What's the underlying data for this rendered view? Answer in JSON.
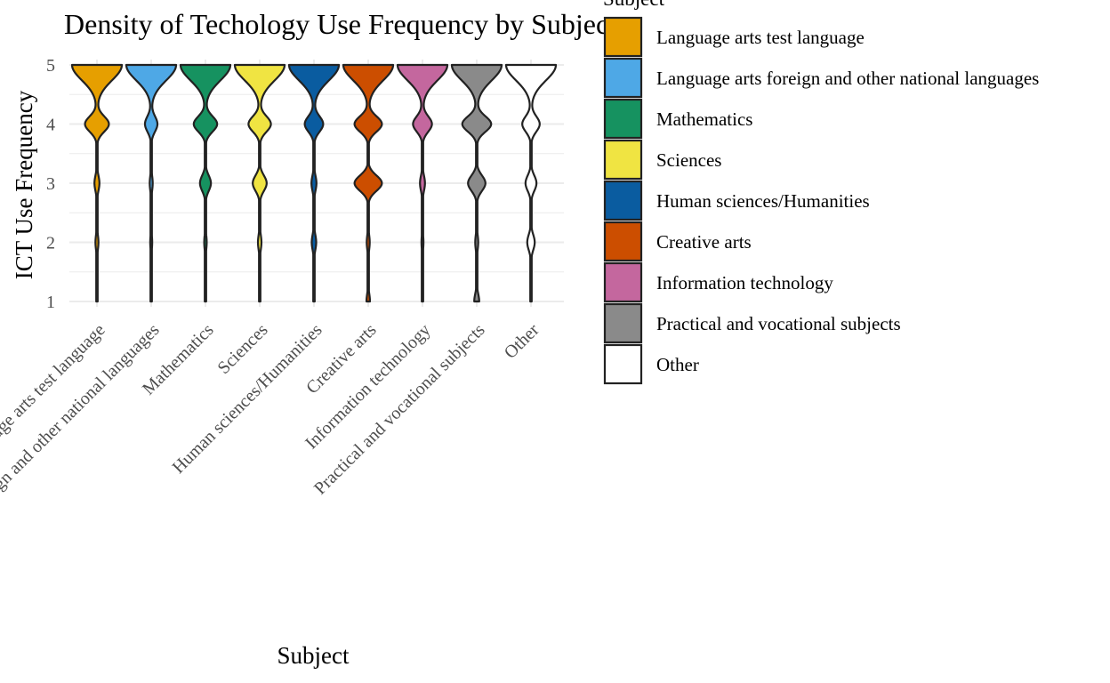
{
  "chart_data": {
    "type": "violin",
    "title": "Density of Techology Use Frequency by Subject",
    "xlabel": "Subject",
    "ylabel": "ICT Use Frequency",
    "ylim": [
      1,
      5
    ],
    "yticks": [
      1,
      2,
      3,
      4,
      5
    ],
    "grid": true,
    "legend_title": "Subject",
    "legend_position": "right",
    "categories": [
      "Language arts test language",
      "Language arts foreign and other national languages",
      "Mathematics",
      "Sciences",
      "Human sciences/Humanities",
      "Creative arts",
      "Information technology",
      "Practical and vocational subjects",
      "Other"
    ],
    "colors": [
      "#E69F00",
      "#4EA8E6",
      "#169260",
      "#F0E442",
      "#0A5CA0",
      "#CC4E00",
      "#C4679E",
      "#8A8A8A",
      "#FFFFFF"
    ],
    "density_levels": [
      1,
      2,
      3,
      4,
      5
    ],
    "series": [
      {
        "name": "Language arts test language",
        "density_by_level": [
          0.02,
          0.06,
          0.1,
          0.48,
          1.0
        ]
      },
      {
        "name": "Language arts foreign and other national languages",
        "density_by_level": [
          0.02,
          0.04,
          0.06,
          0.25,
          1.0
        ]
      },
      {
        "name": "Mathematics",
        "density_by_level": [
          0.02,
          0.05,
          0.22,
          0.47,
          1.0
        ]
      },
      {
        "name": "Sciences",
        "density_by_level": [
          0.02,
          0.07,
          0.28,
          0.45,
          1.0
        ]
      },
      {
        "name": "Human sciences/Humanities",
        "density_by_level": [
          0.03,
          0.09,
          0.1,
          0.37,
          1.0
        ]
      },
      {
        "name": "Creative arts",
        "density_by_level": [
          0.07,
          0.06,
          0.55,
          0.55,
          1.0
        ]
      },
      {
        "name": "Information technology",
        "density_by_level": [
          0.02,
          0.04,
          0.1,
          0.38,
          1.0
        ]
      },
      {
        "name": "Practical and vocational subjects",
        "density_by_level": [
          0.1,
          0.06,
          0.35,
          0.58,
          1.0
        ]
      },
      {
        "name": "Other",
        "density_by_level": [
          0.02,
          0.15,
          0.22,
          0.35,
          1.0
        ]
      }
    ]
  }
}
